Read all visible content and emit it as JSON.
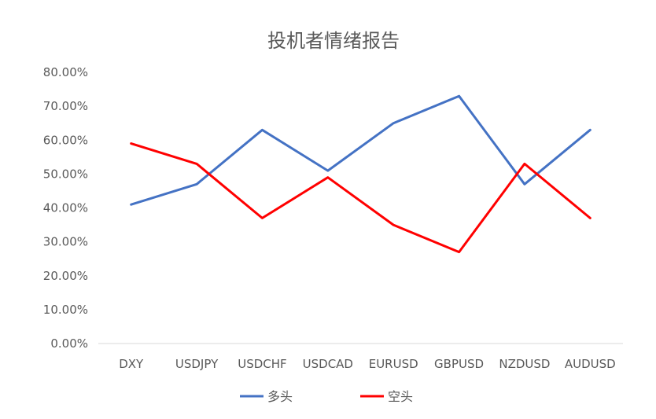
{
  "chart_data": {
    "type": "line",
    "title": "投机者情绪报告",
    "xlabel": "",
    "ylabel": "",
    "categories": [
      "DXY",
      "USDJPY",
      "USDCHF",
      "USDCAD",
      "EURUSD",
      "GBPUSD",
      "NZDUSD",
      "AUDUSD"
    ],
    "ylim": [
      0,
      80
    ],
    "yticks": [
      "0.00%",
      "10.00%",
      "20.00%",
      "30.00%",
      "40.00%",
      "50.00%",
      "60.00%",
      "70.00%",
      "80.00%"
    ],
    "grid": false,
    "legend_position": "bottom",
    "series": [
      {
        "name": "多头",
        "color": "#4472C4",
        "values": [
          41,
          47,
          63,
          51,
          65,
          73,
          47,
          63
        ]
      },
      {
        "name": "空头",
        "color": "#FF0000",
        "values": [
          59,
          53,
          37,
          49,
          35,
          27,
          53,
          37
        ]
      }
    ]
  }
}
